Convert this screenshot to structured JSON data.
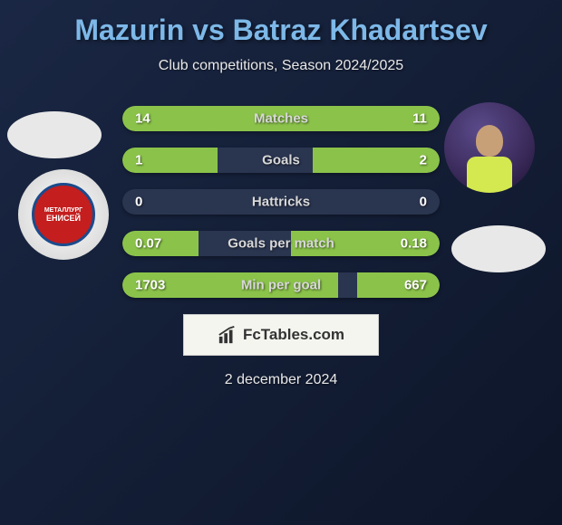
{
  "title": "Mazurin vs Batraz Khadartsev",
  "subtitle": "Club competitions, Season 2024/2025",
  "colors": {
    "title_color": "#7db8e8",
    "bar_fill": "#8bc34a",
    "bar_bg": "#2a3550",
    "page_bg_from": "#1a2744",
    "page_bg_to": "#0d1528"
  },
  "club_left": {
    "name": "ЕНИСЕЙ",
    "top_text": "МЕТАЛЛУРГ"
  },
  "stats": [
    {
      "label": "Matches",
      "left_val": "14",
      "right_val": "11",
      "left_pct": 56,
      "right_pct": 44
    },
    {
      "label": "Goals",
      "left_val": "1",
      "right_val": "2",
      "left_pct": 30,
      "right_pct": 40
    },
    {
      "label": "Hattricks",
      "left_val": "0",
      "right_val": "0",
      "left_pct": 0,
      "right_pct": 0
    },
    {
      "label": "Goals per match",
      "left_val": "0.07",
      "right_val": "0.18",
      "left_pct": 24,
      "right_pct": 47
    },
    {
      "label": "Min per goal",
      "left_val": "1703",
      "right_val": "667",
      "left_pct": 68,
      "right_pct": 26
    }
  ],
  "footer": {
    "site": "FcTables.com",
    "date": "2 december 2024"
  }
}
